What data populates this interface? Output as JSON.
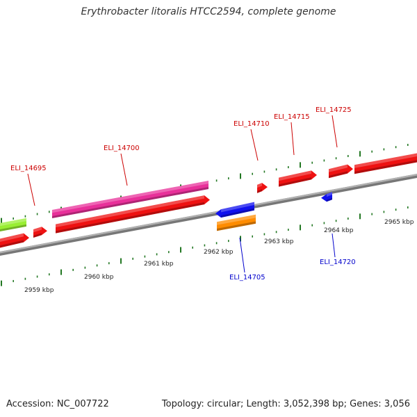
{
  "title": "Erythrobacter litoralis HTCC2594, complete genome",
  "accession": "Accession: NC_007722",
  "summary": "Topology: circular; Length: 3,052,398 bp; Genes: 3,056",
  "colors": {
    "red": "#ee1111",
    "magenta": "#e8309a",
    "green": "#99ee33",
    "blue": "#1111ee",
    "orange": "#ff8c00",
    "tick": "#227722",
    "axis": "#888888",
    "label_red": "#cc0000",
    "label_blue": "#0000cc"
  },
  "scale_labels": [
    {
      "text": "2959 kbp",
      "kbp": 2959
    },
    {
      "text": "2960 kbp",
      "kbp": 2960
    },
    {
      "text": "2961 kbp",
      "kbp": 2961
    },
    {
      "text": "2962 kbp",
      "kbp": 2962
    },
    {
      "text": "2963 kbp",
      "kbp": 2963
    },
    {
      "text": "2964 kbp",
      "kbp": 2964
    },
    {
      "text": "2965 kbp",
      "kbp": 2965
    }
  ],
  "gene_labels": [
    {
      "text": "ELI_14695",
      "color": "red"
    },
    {
      "text": "ELI_14700",
      "color": "red"
    },
    {
      "text": "ELI_14705",
      "color": "blue"
    },
    {
      "text": "ELI_14710",
      "color": "red"
    },
    {
      "text": "ELI_14715",
      "color": "red"
    },
    {
      "text": "ELI_14720",
      "color": "blue"
    },
    {
      "text": "ELI_14725",
      "color": "red"
    }
  ]
}
